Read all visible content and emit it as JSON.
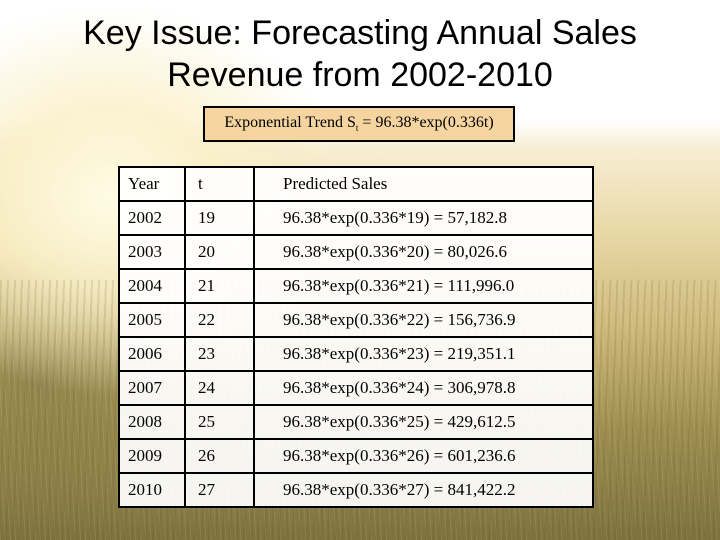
{
  "slide": {
    "title_line1": "Key Issue: Forecasting Annual Sales",
    "title_line2": "Revenue from 2002-2010"
  },
  "formula": {
    "prefix": "Exponential Trend  S",
    "subscript": "t",
    "suffix": " = 96.38*exp(0.336t)"
  },
  "table": {
    "headers": [
      "Year",
      "t",
      "Predicted Sales"
    ],
    "rows": [
      [
        "2002",
        "19",
        "96.38*exp(0.336*19) =  57,182.8"
      ],
      [
        "2003",
        "20",
        "96.38*exp(0.336*20) =  80,026.6"
      ],
      [
        "2004",
        "21",
        "96.38*exp(0.336*21) = 111,996.0"
      ],
      [
        "2005",
        "22",
        "96.38*exp(0.336*22) = 156,736.9"
      ],
      [
        "2006",
        "23",
        "96.38*exp(0.336*23) = 219,351.1"
      ],
      [
        "2007",
        "24",
        "96.38*exp(0.336*24) = 306,978.8"
      ],
      [
        "2008",
        "25",
        "96.38*exp(0.336*25) = 429,612.5"
      ],
      [
        "2009",
        "26",
        "96.38*exp(0.336*26) = 601,236.6"
      ],
      [
        "2010",
        "27",
        "96.38*exp(0.336*27) = 841,422.2"
      ]
    ]
  }
}
